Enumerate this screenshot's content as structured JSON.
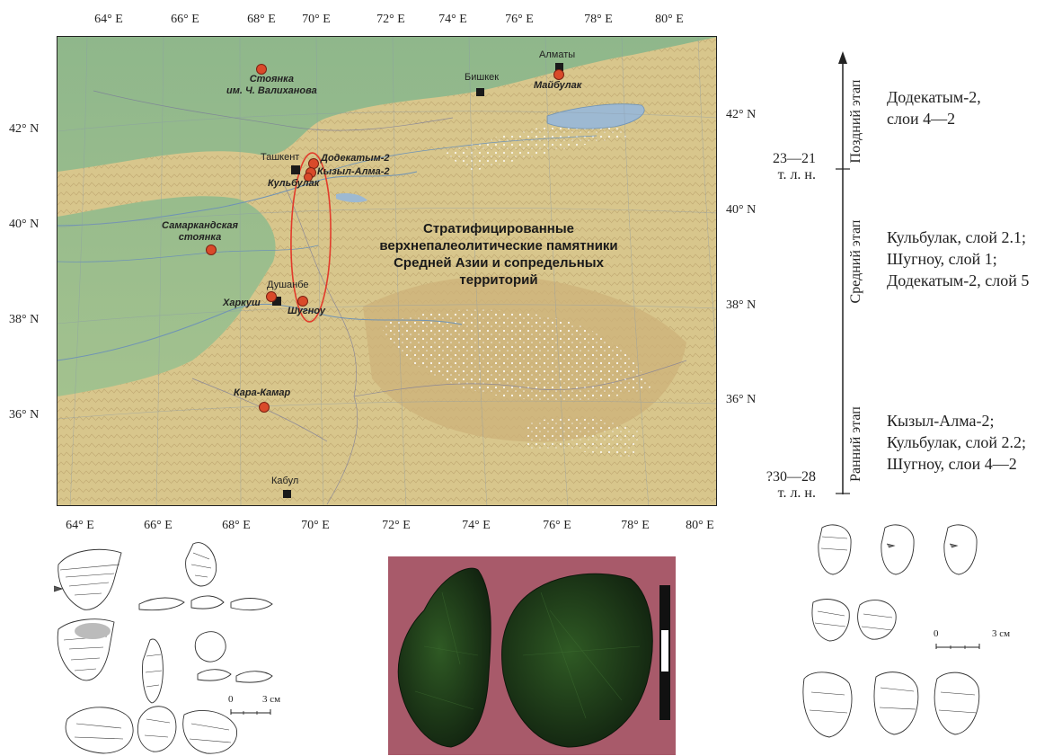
{
  "map": {
    "title_lines": [
      "Стратифицированные",
      "верхнепалеолитические памятники",
      "Средней Азии и сопредельных",
      "территорий"
    ],
    "lon_ticks": [
      "64° E",
      "66° E",
      "68° E",
      "70° E",
      "72° E",
      "74° E",
      "76° E",
      "78° E",
      "80° E"
    ],
    "lat_ticks_left": [
      "42° N",
      "40° N",
      "38° N",
      "36° N"
    ],
    "lat_ticks_right": [
      "42° N",
      "40° N",
      "38° N",
      "36° N"
    ],
    "cities": [
      {
        "id": "almaty",
        "label": "Алматы"
      },
      {
        "id": "bishkek",
        "label": "Бишкек"
      },
      {
        "id": "tashkent",
        "label": "Ташкент"
      },
      {
        "id": "dushanbe",
        "label": "Душанбе"
      },
      {
        "id": "kabul",
        "label": "Кабул"
      }
    ],
    "sites": [
      {
        "id": "valikhanov",
        "lines": [
          "Стоянка",
          "им. Ч. Валиханова"
        ]
      },
      {
        "id": "maybulak",
        "lines": [
          "Майбулак"
        ]
      },
      {
        "id": "dodekatym",
        "lines": [
          "Додекатым-2"
        ]
      },
      {
        "id": "kyzyl-alma",
        "lines": [
          "Кызыл-Алма-2"
        ]
      },
      {
        "id": "kulbulak",
        "lines": [
          "Кульбулак"
        ]
      },
      {
        "id": "samarkand",
        "lines": [
          "Самаркандская",
          "стоянка"
        ]
      },
      {
        "id": "kharkush",
        "lines": [
          "Харкуш"
        ]
      },
      {
        "id": "shugnou",
        "lines": [
          "Шугноу"
        ]
      },
      {
        "id": "kara-kamar",
        "lines": [
          "Кара-Камар"
        ]
      }
    ],
    "colors": {
      "site": "#d94a2a",
      "city": "#1a1a1a",
      "ellipse": "#e23b2b",
      "lowland": "#8db58a",
      "highland": "#d7c48a",
      "lake": "#9fb8cf"
    }
  },
  "timeline": {
    "stages": [
      {
        "id": "late",
        "label": "Поздний этап",
        "desc_lines": [
          "Додекатым-2,",
          "слои 4—2"
        ]
      },
      {
        "id": "middle",
        "label": "Средний этап",
        "desc_lines": [
          "Кульбулак, слой 2.1;",
          "Шугноу, слой 1;",
          "Додекатым-2, слой 5"
        ]
      },
      {
        "id": "early",
        "label": "Ранний этап",
        "desc_lines": [
          "Кызыл-Алма-2;",
          "Кульбулак, слой 2.2;",
          "Шугноу, слои 4—2"
        ]
      }
    ],
    "boundary_upper": [
      "23—21",
      "т. л. н."
    ],
    "boundary_lower": [
      "?30—28",
      "т. л. н."
    ]
  },
  "artifacts": {
    "left_scale": {
      "zero": "0",
      "label": "3 см"
    },
    "right_scale": {
      "zero": "0",
      "label": "3 см"
    },
    "photo_colors": {
      "background": "#a85a6a",
      "stone": "#1e3a1a"
    }
  }
}
